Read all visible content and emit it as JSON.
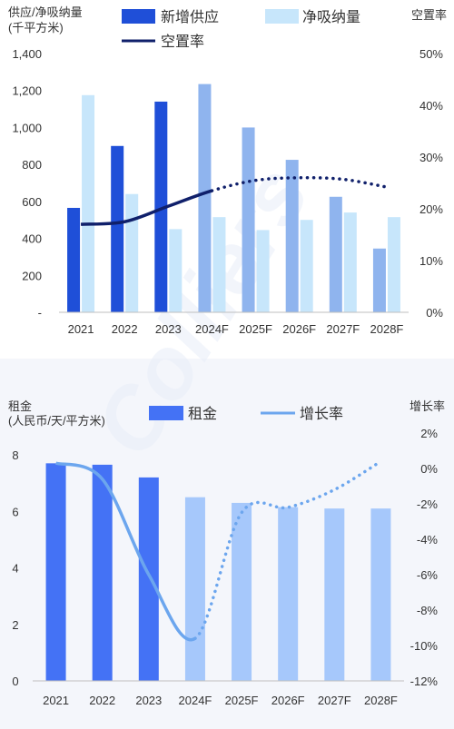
{
  "chart_data": [
    {
      "type": "bar",
      "ylabel_left": "供应/净吸纳量\n(千平方米)",
      "ylabel_right": "空置率",
      "categories": [
        "2021",
        "2022",
        "2023",
        "2024F",
        "2025F",
        "2026F",
        "2027F",
        "2028F"
      ],
      "left_axis": {
        "ylim": [
          0,
          1400
        ],
        "ticks": [
          "-",
          "200",
          "400",
          "600",
          "800",
          "1,000",
          "1,200",
          "1,400"
        ]
      },
      "right_axis": {
        "ylim": [
          0,
          50
        ],
        "ticks": [
          "0%",
          "10%",
          "20%",
          "30%",
          "40%",
          "50%"
        ]
      },
      "series": [
        {
          "name": "新增供应",
          "kind": "bar",
          "axis": "left",
          "values": [
            565,
            900,
            1140,
            1235,
            1000,
            825,
            625,
            345
          ],
          "colors": [
            "#1f4fd8",
            "#1f4fd8",
            "#1f4fd8",
            "#8fb4ee",
            "#8fb4ee",
            "#8fb4ee",
            "#8fb4ee",
            "#8fb4ee"
          ]
        },
        {
          "name": "净吸纳量",
          "kind": "bar",
          "axis": "left",
          "values": [
            1175,
            640,
            450,
            515,
            445,
            500,
            540,
            515
          ],
          "color": "#c7e6fb"
        },
        {
          "name": "空置率",
          "kind": "line",
          "axis": "right",
          "values": [
            17,
            17.5,
            20.5,
            23.5,
            25.5,
            26,
            25.7,
            24.2
          ],
          "solid_through_index": 3,
          "color": "#10206b"
        }
      ],
      "grid": false,
      "legend": "top"
    },
    {
      "type": "bar",
      "ylabel_left": "租金\n(人民币/天/平方米)",
      "ylabel_right": "增长率",
      "categories": [
        "2021",
        "2022",
        "2023",
        "2024F",
        "2025F",
        "2026F",
        "2027F",
        "2028F"
      ],
      "left_axis": {
        "ylim": [
          0,
          8
        ],
        "ticks": [
          "0",
          "2",
          "4",
          "6",
          "8"
        ]
      },
      "right_axis": {
        "ylim": [
          -12,
          2
        ],
        "ticks": [
          "2%",
          "0%",
          "-2%",
          "-4%",
          "-6%",
          "-8%",
          "-10%",
          "-12%"
        ]
      },
      "series": [
        {
          "name": "租金",
          "kind": "bar",
          "axis": "left",
          "values": [
            7.7,
            7.65,
            7.2,
            6.5,
            6.3,
            6.15,
            6.1,
            6.1
          ],
          "colors": [
            "#4472f5",
            "#4472f5",
            "#4472f5",
            "#a6c8fb",
            "#a6c8fb",
            "#a6c8fb",
            "#a6c8fb",
            "#a6c8fb"
          ]
        },
        {
          "name": "增长率",
          "kind": "line",
          "axis": "right",
          "values": [
            0.3,
            -0.6,
            -6,
            -9.6,
            -2.5,
            -2.2,
            -1.2,
            0.4
          ],
          "solid_through_index": 3,
          "color": "#6ca6ee"
        }
      ],
      "grid": false,
      "legend": "top"
    }
  ],
  "watermark": "Colliers"
}
